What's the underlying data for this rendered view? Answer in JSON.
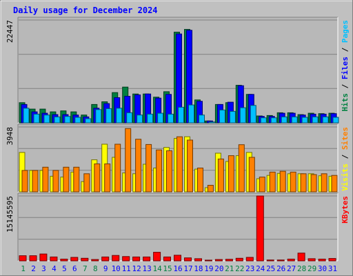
{
  "chart_data": {
    "type": "bar",
    "title": "Daily usage for December 2024",
    "categories": [
      "1",
      "2",
      "3",
      "4",
      "5",
      "6",
      "7",
      "8",
      "9",
      "10",
      "11",
      "12",
      "13",
      "14",
      "15",
      "16",
      "17",
      "18",
      "19",
      "20",
      "21",
      "22",
      "23",
      "24",
      "25",
      "26",
      "27",
      "28",
      "29",
      "30",
      "31"
    ],
    "weekend_days": [
      "1",
      "7",
      "8",
      "14",
      "15",
      "21",
      "22",
      "28",
      "29"
    ],
    "panels": [
      {
        "id": "hits-files-pages",
        "ymax_label": "22447",
        "ylim": [
          0,
          22447
        ],
        "right_labels": [
          {
            "text": "Hits",
            "color": "#008040"
          },
          {
            "text": " / ",
            "color": "#000000"
          },
          {
            "text": "Files",
            "color": "#0000ff"
          },
          {
            "text": " / ",
            "color": "#000000"
          },
          {
            "text": "Pages",
            "color": "#00c0ff"
          }
        ],
        "series": [
          {
            "name": "Hits",
            "color": "#008040",
            "values": [
              4400,
              3000,
              3000,
              2400,
              2600,
              2400,
              1700,
              4000,
              4600,
              6600,
              7800,
              6300,
              6300,
              5600,
              6800,
              19800,
              20400,
              5000,
              400,
              4000,
              4400,
              8200,
              6200,
              1500,
              1600,
              2200,
              2200,
              1800,
              2100,
              2000,
              2100
            ]
          },
          {
            "name": "Files",
            "color": "#0000ff",
            "values": [
              4000,
              2400,
              2100,
              1800,
              1800,
              1700,
              1300,
              3200,
              4200,
              5500,
              5800,
              6100,
              6300,
              5400,
              6200,
              19400,
              20200,
              4700,
              400,
              4000,
              4500,
              8100,
              6200,
              1400,
              1400,
              2100,
              2100,
              1700,
              1900,
              1900,
              2000
            ]
          },
          {
            "name": "Pages",
            "color": "#00c0ff",
            "values": [
              3200,
              1900,
              1700,
              1300,
              1400,
              1200,
              900,
              2900,
              3100,
              3200,
              2200,
              1700,
              1900,
              2100,
              1900,
              3400,
              3900,
              1700,
              200,
              2800,
              2500,
              3300,
              3800,
              1100,
              1100,
              1300,
              1300,
              1200,
              1300,
              1300,
              1200
            ]
          }
        ]
      },
      {
        "id": "visits-sites",
        "ymax_label": "3948",
        "ylim": [
          0,
          3948
        ],
        "right_labels": [
          {
            "text": "Visits",
            "color": "#ffff00"
          },
          {
            "text": " / ",
            "color": "#000000"
          },
          {
            "text": "Sites",
            "color": "#ff8000"
          }
        ],
        "series": [
          {
            "name": "Visits",
            "color": "#ffff00",
            "values": [
              2400,
              1300,
              1300,
              950,
              900,
              1200,
              620,
              1950,
              2900,
              2100,
              1150,
              1100,
              1680,
              1450,
              2700,
              3250,
              3350,
              1380,
              250,
              2350,
              1850,
              2200,
              2400,
              800,
              1000,
              1120,
              1100,
              1100,
              1100,
              980,
              950
            ]
          },
          {
            "name": "Sites",
            "color": "#ff8000",
            "values": [
              1300,
              1300,
              1500,
              1300,
              1500,
              1500,
              1100,
              1700,
              1700,
              2900,
              3850,
              3200,
              2880,
              2550,
              2500,
              3350,
              3150,
              1450,
              400,
              2000,
              2200,
              2870,
              2100,
              900,
              1200,
              1250,
              1200,
              1100,
              1050,
              1100,
              1000
            ]
          }
        ]
      },
      {
        "id": "kbytes",
        "ymax_label": "15145595",
        "ylim": [
          0,
          15145595
        ],
        "right_labels": [
          {
            "text": "KBytes",
            "color": "#ff0000"
          }
        ],
        "series": [
          {
            "name": "KBytes",
            "color": "#ff0000",
            "values": [
              1200000,
              1200000,
              1600000,
              900000,
              400000,
              800000,
              600000,
              300000,
              900000,
              1250000,
              1000000,
              900000,
              900000,
              2000000,
              900000,
              1300000,
              700000,
              500000,
              150000,
              300000,
              350000,
              600000,
              800000,
              15145595,
              200000,
              200000,
              400000,
              1800000,
              500000,
              400000,
              550000
            ]
          }
        ]
      }
    ],
    "colors": {
      "background": "#c0c0c0",
      "plot_background": "#b8b8b8",
      "title_color": "#0000ff",
      "weekday_label_color": "#0000ff",
      "weekend_label_color": "#008040",
      "tick_label_color": "#000000"
    }
  }
}
